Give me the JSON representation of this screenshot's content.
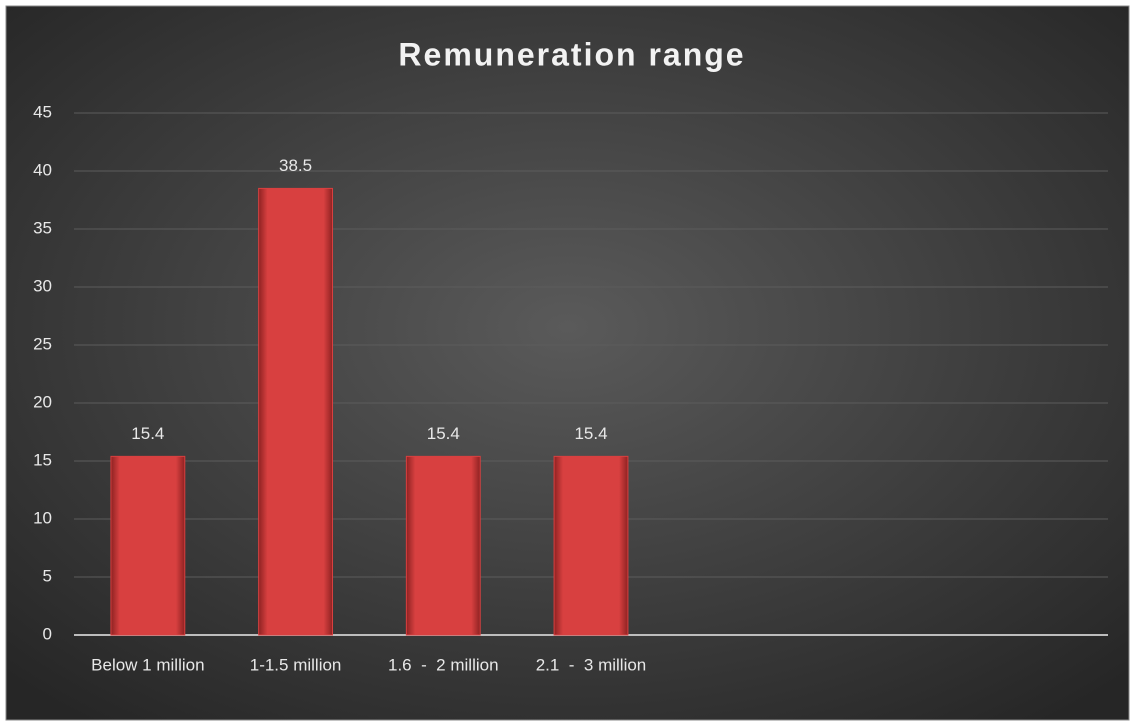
{
  "chart_data": {
    "type": "bar",
    "title": "Remuneration range",
    "categories": [
      "Below 1 million",
      "1-1.5 million",
      "1.6  -  2 million",
      "2.1  -  3 million",
      null,
      null,
      null
    ],
    "values": [
      15.4,
      38.5,
      15.4,
      15.4,
      null,
      null,
      null
    ],
    "color": "#d84040",
    "ylim": [
      0,
      45
    ],
    "yticks": [
      0,
      5,
      10,
      15,
      20,
      25,
      30,
      35,
      40,
      45
    ],
    "grid": true
  }
}
